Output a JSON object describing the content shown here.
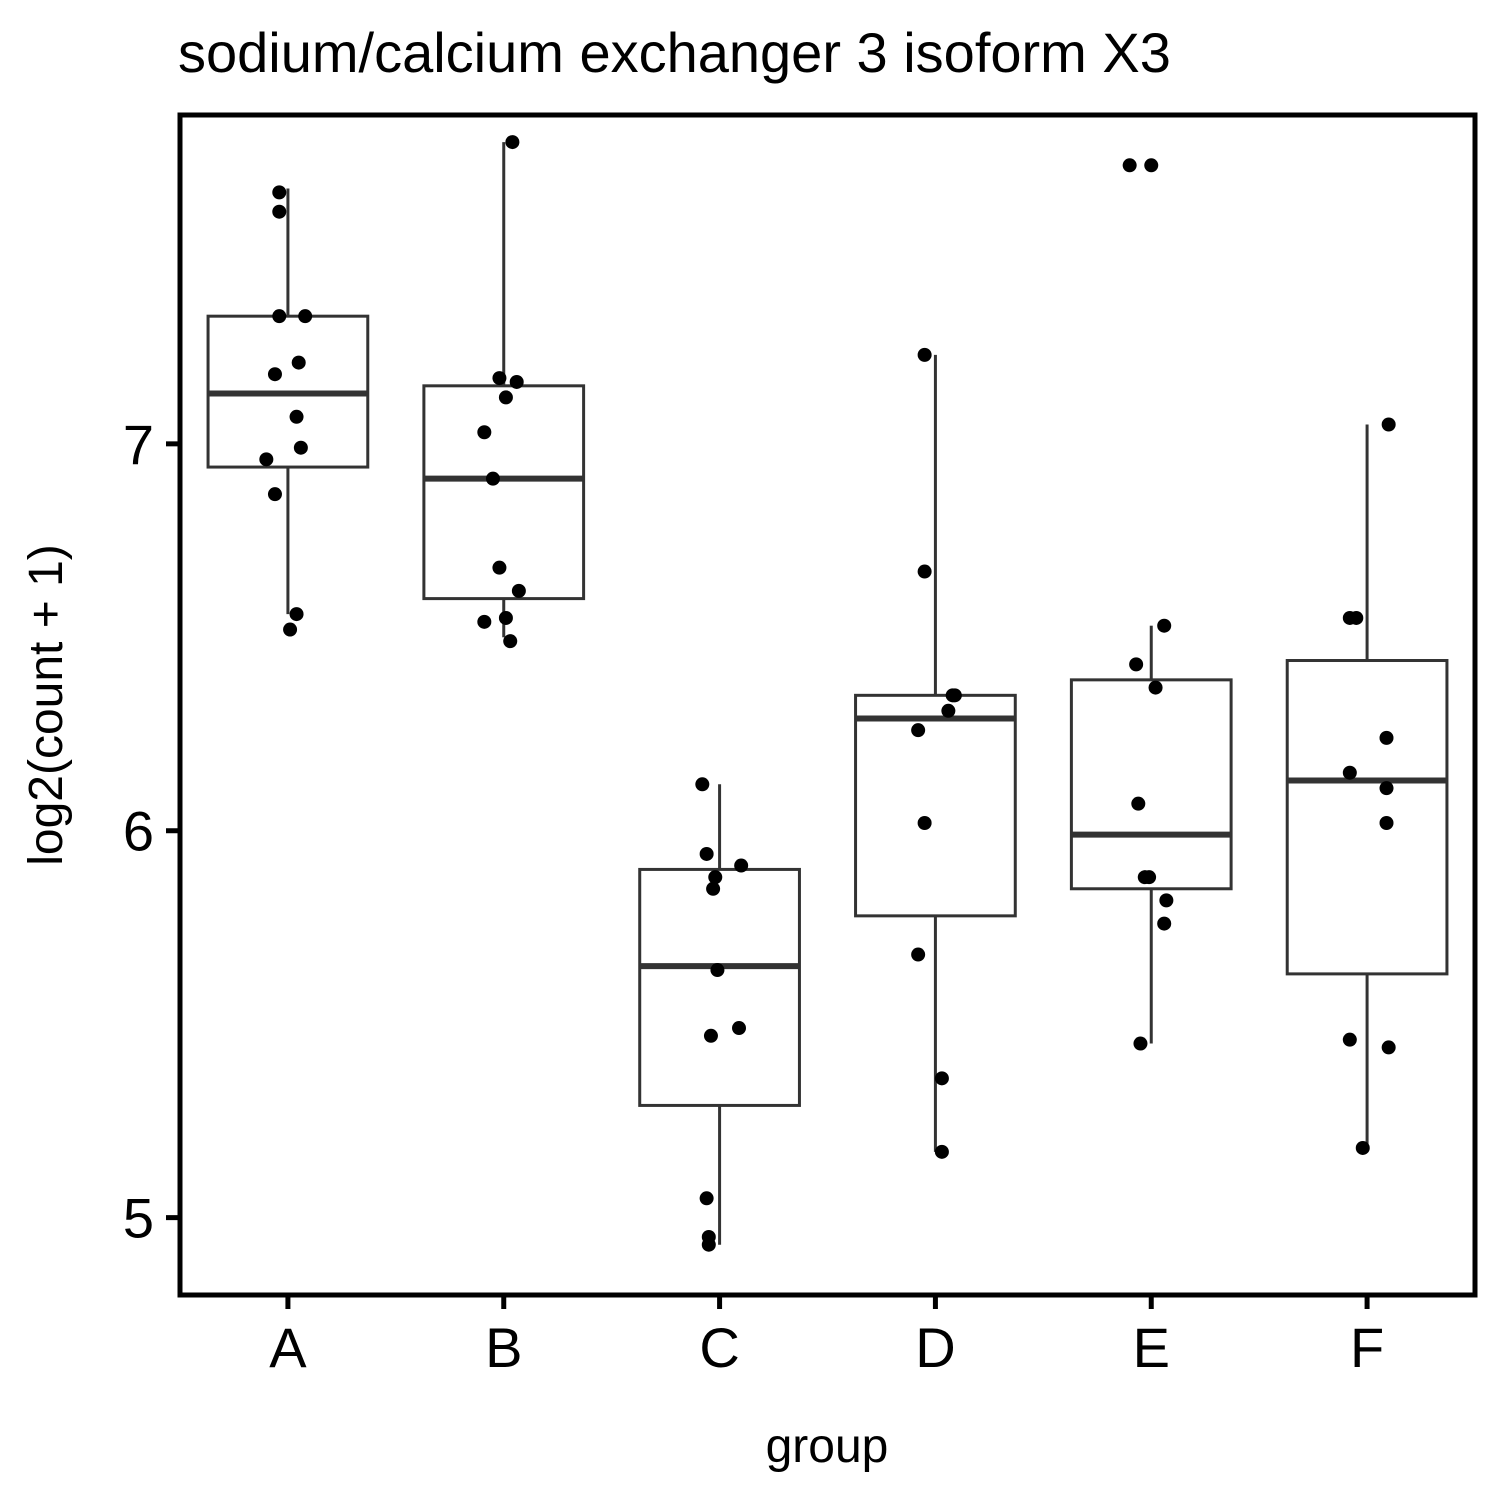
{
  "chart_data": {
    "type": "box",
    "title": "sodium/calcium exchanger 3 isoform X3",
    "xlabel": "group",
    "ylabel": "log2(count + 1)",
    "ylim": [
      4.8,
      7.85
    ],
    "yticks": [
      5,
      6,
      7
    ],
    "grid": false,
    "categories": [
      "A",
      "B",
      "C",
      "D",
      "E",
      "F"
    ],
    "boxes": [
      {
        "group": "A",
        "whisker_low": 6.56,
        "q1": 6.94,
        "median": 7.13,
        "q3": 7.33,
        "whisker_high": 7.66
      },
      {
        "group": "B",
        "whisker_low": 6.5,
        "q1": 6.6,
        "median": 6.91,
        "q3": 7.15,
        "whisker_high": 7.78
      },
      {
        "group": "C",
        "whisker_low": 4.93,
        "q1": 5.29,
        "median": 5.65,
        "q3": 5.9,
        "whisker_high": 6.12
      },
      {
        "group": "D",
        "whisker_low": 5.17,
        "q1": 5.78,
        "median": 6.29,
        "q3": 6.35,
        "whisker_high": 7.23
      },
      {
        "group": "E",
        "whisker_low": 5.45,
        "q1": 5.85,
        "median": 5.99,
        "q3": 6.39,
        "whisker_high": 6.53
      },
      {
        "group": "F",
        "whisker_low": 5.18,
        "q1": 5.63,
        "median": 6.13,
        "q3": 6.44,
        "whisker_high": 7.05
      }
    ],
    "points": [
      {
        "group": "A",
        "jitter": -0.04,
        "value": 7.65
      },
      {
        "group": "A",
        "jitter": -0.04,
        "value": 7.6
      },
      {
        "group": "A",
        "jitter": -0.04,
        "value": 7.33
      },
      {
        "group": "A",
        "jitter": 0.08,
        "value": 7.33
      },
      {
        "group": "A",
        "jitter": 0.05,
        "value": 7.21
      },
      {
        "group": "A",
        "jitter": -0.06,
        "value": 7.18
      },
      {
        "group": "A",
        "jitter": 0.04,
        "value": 7.07
      },
      {
        "group": "A",
        "jitter": 0.06,
        "value": 6.99
      },
      {
        "group": "A",
        "jitter": -0.1,
        "value": 6.96
      },
      {
        "group": "A",
        "jitter": -0.06,
        "value": 6.87
      },
      {
        "group": "A",
        "jitter": 0.04,
        "value": 6.56
      },
      {
        "group": "A",
        "jitter": 0.01,
        "value": 6.52
      },
      {
        "group": "B",
        "jitter": 0.04,
        "value": 7.78
      },
      {
        "group": "B",
        "jitter": -0.02,
        "value": 7.17
      },
      {
        "group": "B",
        "jitter": 0.06,
        "value": 7.16
      },
      {
        "group": "B",
        "jitter": 0.01,
        "value": 7.12
      },
      {
        "group": "B",
        "jitter": -0.09,
        "value": 7.03
      },
      {
        "group": "B",
        "jitter": -0.05,
        "value": 6.91
      },
      {
        "group": "B",
        "jitter": -0.02,
        "value": 6.68
      },
      {
        "group": "B",
        "jitter": 0.07,
        "value": 6.62
      },
      {
        "group": "B",
        "jitter": 0.01,
        "value": 6.55
      },
      {
        "group": "B",
        "jitter": -0.09,
        "value": 6.54
      },
      {
        "group": "B",
        "jitter": 0.03,
        "value": 6.49
      },
      {
        "group": "C",
        "jitter": -0.08,
        "value": 6.12
      },
      {
        "group": "C",
        "jitter": -0.06,
        "value": 5.94
      },
      {
        "group": "C",
        "jitter": 0.1,
        "value": 5.91
      },
      {
        "group": "C",
        "jitter": -0.02,
        "value": 5.88
      },
      {
        "group": "C",
        "jitter": -0.03,
        "value": 5.85
      },
      {
        "group": "C",
        "jitter": -0.01,
        "value": 5.64
      },
      {
        "group": "C",
        "jitter": 0.09,
        "value": 5.49
      },
      {
        "group": "C",
        "jitter": -0.04,
        "value": 5.47
      },
      {
        "group": "C",
        "jitter": -0.06,
        "value": 5.05
      },
      {
        "group": "C",
        "jitter": -0.05,
        "value": 4.95
      },
      {
        "group": "C",
        "jitter": -0.05,
        "value": 4.93
      },
      {
        "group": "D",
        "jitter": -0.05,
        "value": 7.23
      },
      {
        "group": "D",
        "jitter": -0.05,
        "value": 6.67
      },
      {
        "group": "D",
        "jitter": 0.08,
        "value": 6.35
      },
      {
        "group": "D",
        "jitter": 0.09,
        "value": 6.35
      },
      {
        "group": "D",
        "jitter": 0.06,
        "value": 6.31
      },
      {
        "group": "D",
        "jitter": -0.08,
        "value": 6.26
      },
      {
        "group": "D",
        "jitter": -0.05,
        "value": 6.02
      },
      {
        "group": "D",
        "jitter": -0.08,
        "value": 5.68
      },
      {
        "group": "D",
        "jitter": 0.03,
        "value": 5.36
      },
      {
        "group": "D",
        "jitter": 0.03,
        "value": 5.17
      },
      {
        "group": "E",
        "jitter": -0.1,
        "value": 7.72
      },
      {
        "group": "E",
        "jitter": 0.0,
        "value": 7.72
      },
      {
        "group": "E",
        "jitter": 0.06,
        "value": 6.53
      },
      {
        "group": "E",
        "jitter": -0.07,
        "value": 6.43
      },
      {
        "group": "E",
        "jitter": 0.02,
        "value": 6.37
      },
      {
        "group": "E",
        "jitter": -0.06,
        "value": 6.07
      },
      {
        "group": "E",
        "jitter": -0.01,
        "value": 5.88
      },
      {
        "group": "E",
        "jitter": -0.03,
        "value": 5.88
      },
      {
        "group": "E",
        "jitter": 0.07,
        "value": 5.82
      },
      {
        "group": "E",
        "jitter": 0.06,
        "value": 5.76
      },
      {
        "group": "E",
        "jitter": -0.05,
        "value": 5.45
      },
      {
        "group": "F",
        "jitter": -0.08,
        "value": 6.55
      },
      {
        "group": "F",
        "jitter": -0.05,
        "value": 6.55
      },
      {
        "group": "F",
        "jitter": 0.1,
        "value": 7.05
      },
      {
        "group": "F",
        "jitter": 0.09,
        "value": 6.24
      },
      {
        "group": "F",
        "jitter": -0.08,
        "value": 6.15
      },
      {
        "group": "F",
        "jitter": 0.09,
        "value": 6.11
      },
      {
        "group": "F",
        "jitter": 0.09,
        "value": 6.02
      },
      {
        "group": "F",
        "jitter": -0.08,
        "value": 5.46
      },
      {
        "group": "F",
        "jitter": 0.1,
        "value": 5.44
      },
      {
        "group": "F",
        "jitter": -0.02,
        "value": 5.18
      }
    ]
  }
}
